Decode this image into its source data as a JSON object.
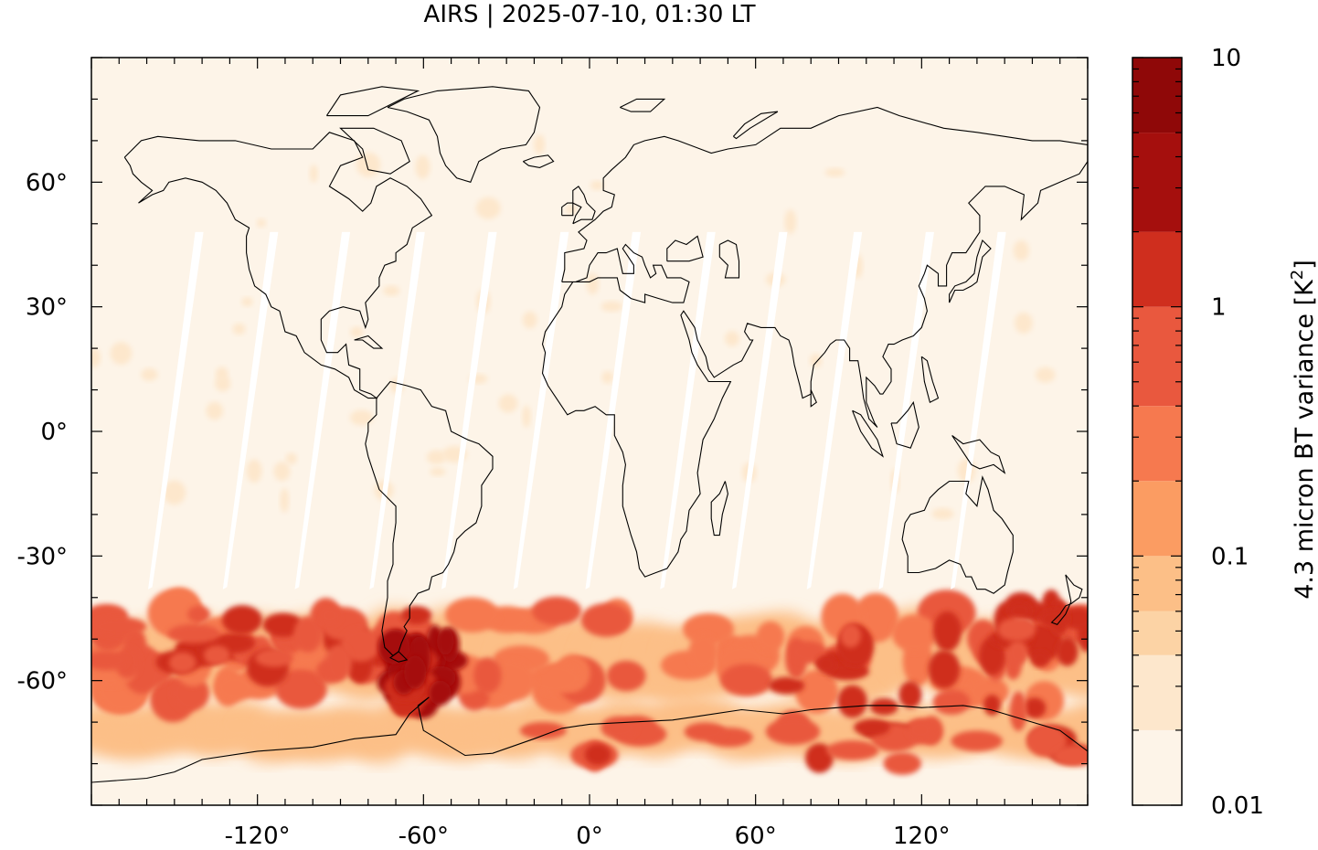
{
  "title": "AIRS | 2025-07-10, 01:30 LT",
  "map": {
    "lon_range": [
      -180,
      180
    ],
    "lat_range": [
      -90,
      90
    ],
    "x_ticks": [
      -120,
      -60,
      0,
      60,
      120
    ],
    "x_tick_labels": [
      "-120°",
      "-60°",
      "0°",
      "60°",
      "120°"
    ],
    "y_ticks": [
      60,
      30,
      0,
      -30,
      -60
    ],
    "y_tick_labels": [
      "60°",
      "30°",
      "0°",
      "-30°",
      "-60°"
    ],
    "background_color": "#fdf4e8",
    "coastline_color": "#000000",
    "orbit_gap_color": "#ffffff",
    "orbit_gaps_lon_at_equator": [
      -152,
      -125,
      -99,
      -72,
      -46,
      -20,
      6,
      33,
      59,
      86,
      112,
      138
    ]
  },
  "colorbar": {
    "label": "4.3 micron BT variance [K²]",
    "label_base": "4.3 micron BT variance [K",
    "label_sup": "2",
    "label_end": "]",
    "scale": "log",
    "range": [
      0.01,
      10
    ],
    "tick_values": [
      10,
      1,
      0.1,
      0.01
    ],
    "tick_labels": [
      "10",
      "1",
      "0.1",
      "0.01"
    ],
    "levels": [
      0.01,
      0.02,
      0.04,
      0.06,
      0.1,
      0.2,
      0.4,
      1,
      2,
      5,
      10
    ],
    "colors": [
      "#fdf4e8",
      "#fde7cc",
      "#fcd3a5",
      "#fcbf87",
      "#fb9c62",
      "#f6794f",
      "#e9583e",
      "#cf2e1e",
      "#a50f0d",
      "#8f0808"
    ]
  },
  "chart_data": {
    "type": "heatmap",
    "title": "AIRS | 2025-07-10, 01:30 LT",
    "xlabel": "",
    "ylabel": "",
    "colorbar_label": "4.3 micron BT variance [K²]",
    "colorbar_range": [
      0.01,
      10
    ],
    "colorbar_scale": "log",
    "regions": [
      {
        "lon": [
          -70,
          -50
        ],
        "lat": [
          -65,
          -50
        ],
        "level": "max",
        "value": 5
      },
      {
        "lon": [
          -180,
          -60
        ],
        "lat": [
          -60,
          -40
        ],
        "value": 1
      },
      {
        "lon": [
          -60,
          180
        ],
        "lat": [
          -70,
          -45
        ],
        "value": 0.5
      },
      {
        "lon": [
          -180,
          180
        ],
        "lat": [
          -85,
          -70
        ],
        "value": 0.4
      },
      {
        "lon": [
          150,
          180
        ],
        "lat": [
          -55,
          -40
        ],
        "value": 1
      },
      {
        "lon": [
          -180,
          180
        ],
        "lat": [
          -40,
          80
        ],
        "value": 0.01
      }
    ]
  }
}
